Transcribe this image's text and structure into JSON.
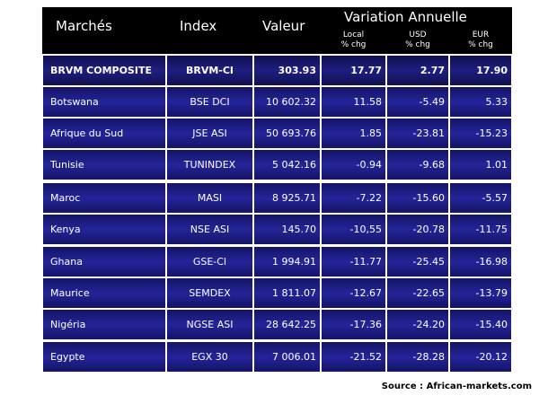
{
  "table": {
    "title": "Variation Annuelle",
    "headers": [
      "Marchés",
      "Index",
      "Valeur"
    ],
    "subheaders": [
      [
        "Local",
        "% chg"
      ],
      [
        "USD",
        "% chg"
      ],
      [
        "EUR",
        "% chg"
      ]
    ],
    "rows": [
      [
        "BRVM COMPOSITE",
        "BRVM-CI",
        "303.93",
        "17.77",
        "2.77",
        "17.90"
      ],
      [
        "Botswana",
        "BSE DCI",
        "10 602.32",
        "11.58",
        "-5.49",
        "5.33"
      ],
      [
        "Afrique du Sud",
        "JSE ASI",
        "50 693.76",
        "1.85",
        "-23.81",
        "-15.23"
      ],
      [
        "Tunisie",
        "TUNINDEX",
        "5 042.16",
        "-0.94",
        "-9.68",
        "1.01"
      ],
      [
        "Maroc",
        "MASI",
        "8 925.71",
        "-7.22",
        "-15.60",
        "-5.57"
      ],
      [
        "Kenya",
        "NSE ASI",
        "145.70",
        "-10,55",
        "-20.78",
        "-11.75"
      ],
      [
        "Ghana",
        "GSE-CI",
        "1 994.91",
        "-11.77",
        "-25.45",
        "-16.98"
      ],
      [
        "Maurice",
        "SEMDEX",
        "1 811.07",
        "-12.67",
        "-22.65",
        "-13.79"
      ],
      [
        "Nigéria",
        "NGSE ASI",
        "28 642.25",
        "-17.36",
        "-24.20",
        "-15.40"
      ],
      [
        "Egypte",
        "EGX 30",
        "7 006.01",
        "-21.52",
        "-28.28",
        "-20.12"
      ]
    ],
    "source": "Source : African-markets.com"
  }
}
